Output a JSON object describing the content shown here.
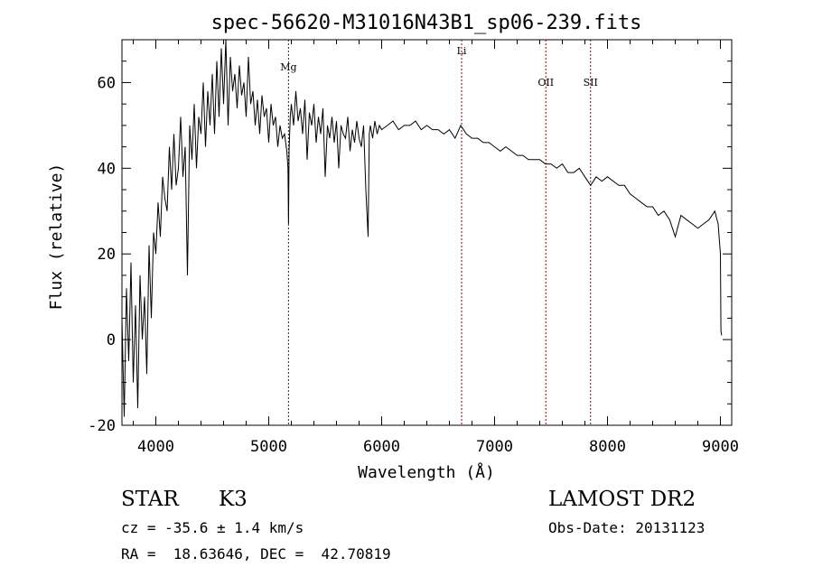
{
  "chart_data": {
    "type": "line",
    "title": "spec-56620-M31016N43B1_sp06-239.fits",
    "xlabel": "Wavelength (Å)",
    "ylabel": "Flux (relative)",
    "xlim": [
      3700,
      9100
    ],
    "ylim": [
      -20,
      70
    ],
    "x_ticks": [
      4000,
      5000,
      6000,
      7000,
      8000,
      9000
    ],
    "y_ticks": [
      -20,
      0,
      20,
      40,
      60
    ],
    "grid": false,
    "line_color": "#000000",
    "marker_color": "#8b0000",
    "lines": [
      {
        "label": "Mg",
        "x": 5175
      },
      {
        "label": "Li",
        "x": 6708
      },
      {
        "label": "OII",
        "x": 7454
      },
      {
        "label": "SII",
        "x": 7850
      }
    ],
    "series": [
      {
        "x": [
          3700,
          3720,
          3740,
          3760,
          3780,
          3800,
          3820,
          3840,
          3860,
          3880,
          3900,
          3920,
          3940,
          3960,
          3980,
          4000,
          4020,
          4040,
          4060,
          4080,
          4100,
          4120,
          4140,
          4160,
          4180,
          4200,
          4220,
          4240,
          4260,
          4280,
          4300,
          4320,
          4340,
          4360,
          4380,
          4400,
          4420,
          4440,
          4460,
          4480,
          4500,
          4520,
          4540,
          4560,
          4580,
          4600,
          4620,
          4640,
          4660,
          4680,
          4700,
          4720,
          4740,
          4760,
          4780,
          4800,
          4820,
          4840,
          4860,
          4880,
          4900,
          4920,
          4940,
          4960,
          4980,
          5000,
          5020,
          5040,
          5060,
          5080,
          5100,
          5120,
          5140,
          5160,
          5170,
          5175,
          5180,
          5190,
          5200,
          5220,
          5240,
          5260,
          5280,
          5300,
          5320,
          5340,
          5360,
          5380,
          5400,
          5420,
          5440,
          5460,
          5480,
          5500,
          5520,
          5540,
          5560,
          5580,
          5600,
          5620,
          5640,
          5660,
          5680,
          5700,
          5720,
          5740,
          5760,
          5780,
          5800,
          5820,
          5840,
          5860,
          5880,
          5890,
          5900,
          5920,
          5940,
          5960,
          5980,
          6000,
          6050,
          6100,
          6150,
          6200,
          6250,
          6300,
          6350,
          6400,
          6450,
          6500,
          6550,
          6600,
          6650,
          6700,
          6750,
          6800,
          6850,
          6900,
          6950,
          7000,
          7050,
          7100,
          7150,
          7200,
          7250,
          7300,
          7350,
          7400,
          7450,
          7500,
          7550,
          7600,
          7650,
          7700,
          7750,
          7800,
          7850,
          7900,
          7950,
          8000,
          8050,
          8100,
          8150,
          8200,
          8250,
          8300,
          8350,
          8400,
          8450,
          8500,
          8550,
          8600,
          8650,
          8700,
          8750,
          8800,
          8850,
          8900,
          8950,
          8980,
          9000,
          9005,
          9010
        ],
        "y": [
          5,
          -18,
          12,
          -5,
          18,
          -10,
          8,
          -16,
          15,
          0,
          10,
          -8,
          22,
          5,
          25,
          20,
          32,
          24,
          38,
          33,
          30,
          45,
          35,
          48,
          36,
          40,
          52,
          38,
          45,
          15,
          50,
          42,
          55,
          40,
          52,
          48,
          60,
          45,
          58,
          50,
          62,
          48,
          65,
          52,
          68,
          55,
          70,
          50,
          66,
          58,
          62,
          54,
          64,
          57,
          60,
          52,
          66,
          55,
          58,
          50,
          56,
          48,
          57,
          52,
          54,
          46,
          55,
          50,
          52,
          45,
          50,
          47,
          48,
          44,
          40,
          27,
          44,
          52,
          55,
          50,
          58,
          51,
          54,
          48,
          56,
          42,
          53,
          50,
          55,
          46,
          52,
          48,
          54,
          38,
          50,
          47,
          52,
          46,
          51,
          40,
          50,
          48,
          47,
          52,
          44,
          49,
          46,
          51,
          47,
          45,
          50,
          35,
          24,
          48,
          50,
          47,
          51,
          48,
          50,
          49,
          50,
          51,
          49,
          50,
          50,
          51,
          49,
          50,
          49,
          49,
          48,
          49,
          47,
          50,
          48,
          47,
          47,
          46,
          46,
          45,
          44,
          45,
          44,
          43,
          43,
          42,
          42,
          42,
          41,
          41,
          40,
          41,
          39,
          39,
          40,
          38,
          36,
          38,
          37,
          38,
          37,
          36,
          36,
          34,
          33,
          32,
          31,
          31,
          29,
          30,
          28,
          24,
          29,
          28,
          27,
          26,
          27,
          28,
          30,
          27,
          20,
          2,
          1
        ]
      }
    ]
  },
  "info": {
    "class_label": "STAR",
    "subclass": "K3",
    "survey": "LAMOST DR2",
    "cz_line": "cz = -35.6 ± 1.4 km/s",
    "obs_date": "Obs-Date: 20131123",
    "coords": "RA =  18.63646, DEC =  42.70819"
  }
}
